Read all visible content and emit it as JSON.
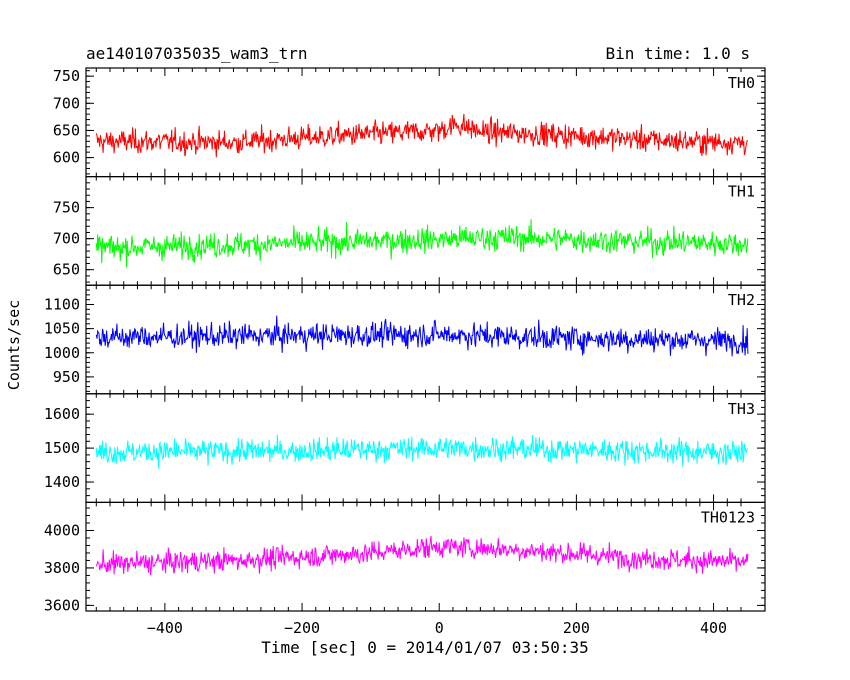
{
  "header": {
    "title": "ae140107035035_wam3_trn",
    "bin_time": "Bin time: 1.0 s"
  },
  "chart_data": {
    "type": "line",
    "title": "ae140107035035_wam3_trn",
    "subtitle": "Bin time: 1.0 s",
    "xlabel": "Time [sec] 0 = 2014/01/07 03:50:35",
    "ylabel": "Counts/sec",
    "xlim": [
      -515,
      475
    ],
    "x_range": [
      -500,
      450
    ],
    "x_step": 1,
    "xticks": [
      -400,
      -200,
      0,
      200,
      400
    ],
    "grid": false,
    "legend": "none",
    "panels": [
      {
        "name": "TH0",
        "color": "#ff0000",
        "ylim": [
          565,
          765
        ],
        "yticks": [
          600,
          650,
          700,
          750
        ],
        "mean": 633,
        "amplitude": 28,
        "trend": [
          [
            -500,
            630
          ],
          [
            -300,
            628
          ],
          [
            -150,
            640
          ],
          [
            0,
            650
          ],
          [
            25,
            662
          ],
          [
            60,
            648
          ],
          [
            200,
            640
          ],
          [
            350,
            630
          ],
          [
            450,
            628
          ]
        ]
      },
      {
        "name": "TH1",
        "color": "#00ff00",
        "ylim": [
          625,
          800
        ],
        "yticks": [
          650,
          700,
          750
        ],
        "mean": 693,
        "amplitude": 26,
        "trend": [
          [
            -500,
            685
          ],
          [
            -300,
            690
          ],
          [
            -100,
            696
          ],
          [
            100,
            702
          ],
          [
            300,
            695
          ],
          [
            450,
            692
          ]
        ]
      },
      {
        "name": "TH2",
        "color": "#0000ff",
        "ylim": [
          915,
          1140
        ],
        "yticks": [
          950,
          1000,
          1050,
          1100
        ],
        "mean": 1033,
        "amplitude": 33,
        "trend": [
          [
            -500,
            1032
          ],
          [
            -200,
            1036
          ],
          [
            0,
            1038
          ],
          [
            200,
            1030
          ],
          [
            450,
            1025
          ]
        ]
      },
      {
        "name": "TH3",
        "color": "#00ffff",
        "ylim": [
          1340,
          1660
        ],
        "yticks": [
          1400,
          1500,
          1600
        ],
        "mean": 1493,
        "amplitude": 45,
        "trend": [
          [
            -500,
            1488
          ],
          [
            -200,
            1492
          ],
          [
            0,
            1500
          ],
          [
            200,
            1495
          ],
          [
            450,
            1487
          ]
        ]
      },
      {
        "name": "TH0123",
        "color": "#ff00ff",
        "ylim": [
          3570,
          4150
        ],
        "yticks": [
          3600,
          3800,
          4000
        ],
        "mean": 3855,
        "amplitude": 75,
        "trend": [
          [
            -500,
            3820
          ],
          [
            -300,
            3840
          ],
          [
            -100,
            3880
          ],
          [
            0,
            3915
          ],
          [
            100,
            3900
          ],
          [
            300,
            3850
          ],
          [
            450,
            3830
          ]
        ]
      }
    ]
  }
}
